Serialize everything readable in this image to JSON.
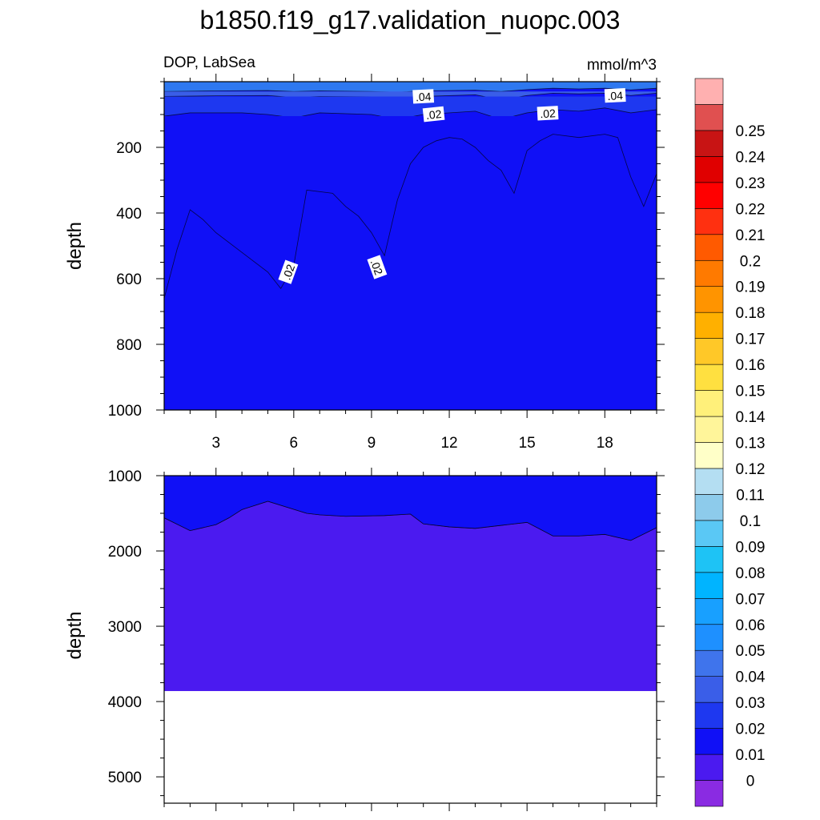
{
  "figure": {
    "title": "b1850.f19_g17.validation_nuopc.003",
    "variable_label": "DOP, LabSea",
    "units_label": "mmol/m^3"
  },
  "colors": {
    "c_0": "#8A2BE2",
    "c_0_01": "#4B1AF0",
    "c_0_02": "#1010F6",
    "c_0_03": "#1E38F0",
    "c_0_04": "#3A5EE8",
    "c_0_05": "#2E78F0",
    "c_0_06": "#1E90FF",
    "colorbar": [
      "#8A2BE2",
      "#4B1AF0",
      "#1010F6",
      "#1E38F0",
      "#3A5EE8",
      "#3F74EC",
      "#1E90FF",
      "#18A0FF",
      "#00B4FF",
      "#1EC3F5",
      "#5AC8F5",
      "#8DCBEB",
      "#B4DEF2",
      "#FFFFC8",
      "#FFF59A",
      "#FFF07A",
      "#FFE040",
      "#FFC828",
      "#FFB000",
      "#FF9400",
      "#FF7A00",
      "#FF5A00",
      "#FF3010",
      "#FF0000",
      "#E00000",
      "#C81414",
      "#E05050",
      "#FFB0B0"
    ]
  },
  "chart_data": [
    {
      "type": "heatmap",
      "panel": "top",
      "ylabel": "depth",
      "xlim": [
        1,
        20
      ],
      "ylim": [
        1000,
        0
      ],
      "x_ticks": [
        3,
        6,
        9,
        12,
        15,
        18
      ],
      "x_tick_labels": [
        "3",
        "6",
        "9",
        "12",
        "15",
        "18"
      ],
      "y_ticks": [
        200,
        400,
        600,
        800,
        1000
      ],
      "y_tick_labels": [
        "200",
        "400",
        "600",
        "800",
        "1000"
      ],
      "regions": [
        {
          "level": 0.05,
          "color_key": "c_0_05",
          "top": [
            [
              1,
              0
            ],
            [
              20,
              0
            ]
          ],
          "bottom": [
            [
              1,
              30
            ],
            [
              3,
              28
            ],
            [
              5,
              27
            ],
            [
              6,
              30
            ],
            [
              7,
              28
            ],
            [
              9,
              30
            ],
            [
              10,
              32
            ],
            [
              11,
              28
            ],
            [
              13,
              26
            ],
            [
              14,
              30
            ],
            [
              15,
              24
            ],
            [
              16,
              20
            ],
            [
              17,
              22
            ],
            [
              18,
              20
            ],
            [
              19,
              25
            ],
            [
              20,
              20
            ]
          ]
        },
        {
          "level": 0.04,
          "color_key": "c_0_04",
          "top": [
            [
              1,
              30
            ],
            [
              20,
              30
            ]
          ],
          "bottom": [
            [
              1,
              45
            ],
            [
              3,
              43
            ],
            [
              5,
              42
            ],
            [
              6,
              48
            ],
            [
              7,
              45
            ],
            [
              9,
              46
            ],
            [
              10,
              52
            ],
            [
              11,
              45
            ],
            [
              13,
              40
            ],
            [
              14,
              55
            ],
            [
              15,
              42
            ],
            [
              16,
              35
            ],
            [
              17,
              37
            ],
            [
              18,
              35
            ],
            [
              19,
              42
            ],
            [
              20,
              35
            ]
          ]
        },
        {
          "level": 0.03,
          "color_key": "c_0_03",
          "top": [
            [
              1,
              45
            ],
            [
              20,
              45
            ]
          ],
          "bottom": [
            [
              1,
              105
            ],
            [
              2,
              95
            ],
            [
              4,
              95
            ],
            [
              5,
              100
            ],
            [
              6,
              110
            ],
            [
              7,
              95
            ],
            [
              9,
              100
            ],
            [
              10,
              115
            ],
            [
              11,
              100
            ],
            [
              13,
              90
            ],
            [
              14,
              115
            ],
            [
              15,
              95
            ],
            [
              16,
              85
            ],
            [
              17,
              90
            ],
            [
              18,
              80
            ],
            [
              19,
              95
            ],
            [
              20,
              85
            ]
          ]
        },
        {
          "level": 0.02,
          "color_key": "c_0_02",
          "top": [
            [
              1,
              105
            ],
            [
              20,
              105
            ]
          ],
          "bottom": [
            [
              1,
              660
            ],
            [
              1.5,
              510
            ],
            [
              2,
              390
            ],
            [
              2.5,
              420
            ],
            [
              3,
              460
            ],
            [
              4,
              520
            ],
            [
              5,
              580
            ],
            [
              5.5,
              630
            ],
            [
              6,
              560
            ],
            [
              6.5,
              330
            ],
            [
              7.5,
              340
            ],
            [
              8,
              380
            ],
            [
              8.5,
              410
            ],
            [
              9,
              460
            ],
            [
              9.5,
              530
            ],
            [
              10,
              360
            ],
            [
              10.5,
              250
            ],
            [
              11,
              200
            ],
            [
              11.5,
              180
            ],
            [
              12,
              170
            ],
            [
              12.5,
              175
            ],
            [
              13,
              200
            ],
            [
              13.5,
              240
            ],
            [
              14,
              270
            ],
            [
              14.5,
              340
            ],
            [
              15,
              210
            ],
            [
              15.5,
              180
            ],
            [
              16,
              160
            ],
            [
              17,
              170
            ],
            [
              18,
              160
            ],
            [
              18.5,
              170
            ],
            [
              19,
              290
            ],
            [
              19.5,
              380
            ],
            [
              20,
              280
            ]
          ]
        }
      ],
      "contour_labels": [
        {
          "text": ".04",
          "x": 11,
          "y": 46,
          "angle": -3
        },
        {
          "text": ".04",
          "x": 18.4,
          "y": 43,
          "angle": -3
        },
        {
          "text": ".02",
          "x": 11.4,
          "y": 100,
          "angle": -6
        },
        {
          "text": ".02",
          "x": 15.8,
          "y": 97,
          "angle": -3
        },
        {
          "text": ".02",
          "x": 5.8,
          "y": 580,
          "angle": -70
        },
        {
          "text": ".02",
          "x": 9.2,
          "y": 565,
          "angle": 70
        }
      ]
    },
    {
      "type": "heatmap",
      "panel": "bottom",
      "ylabel": "depth",
      "xlim": [
        1,
        20
      ],
      "ylim": [
        5350,
        1000
      ],
      "x_ticks": [
        3,
        6,
        9,
        12,
        15,
        18
      ],
      "y_ticks": [
        1000,
        2000,
        3000,
        4000,
        5000
      ],
      "y_tick_labels": [
        "1000",
        "2000",
        "3000",
        "4000",
        "5000"
      ],
      "fill_top": 1000,
      "fill_bottom": 3860,
      "regions": [
        {
          "level": 0.01,
          "color_key": "c_0_01",
          "top": [
            [
              1,
              1000
            ],
            [
              20,
              1000
            ]
          ],
          "bottom": [
            [
              1,
              1560
            ],
            [
              2,
              1730
            ],
            [
              3,
              1650
            ],
            [
              3.5,
              1560
            ],
            [
              4,
              1450
            ],
            [
              5,
              1340
            ],
            [
              6.5,
              1500
            ],
            [
              7,
              1520
            ],
            [
              8,
              1540
            ],
            [
              9.5,
              1530
            ],
            [
              10.5,
              1510
            ],
            [
              11,
              1640
            ],
            [
              12,
              1680
            ],
            [
              13,
              1700
            ],
            [
              14,
              1660
            ],
            [
              15,
              1620
            ],
            [
              16,
              1800
            ],
            [
              17,
              1800
            ],
            [
              18,
              1780
            ],
            [
              19,
              1860
            ],
            [
              20,
              1690
            ]
          ]
        }
      ]
    }
  ],
  "colorbar": {
    "labels": [
      "0",
      "0.01",
      "0.02",
      "0.03",
      "0.04",
      "0.05",
      "0.06",
      "0.07",
      "0.08",
      "0.09",
      "0.1",
      "0.11",
      "0.12",
      "0.13",
      "0.14",
      "0.15",
      "0.16",
      "0.17",
      "0.18",
      "0.19",
      "0.2",
      "0.21",
      "0.22",
      "0.23",
      "0.24",
      "0.25"
    ]
  }
}
